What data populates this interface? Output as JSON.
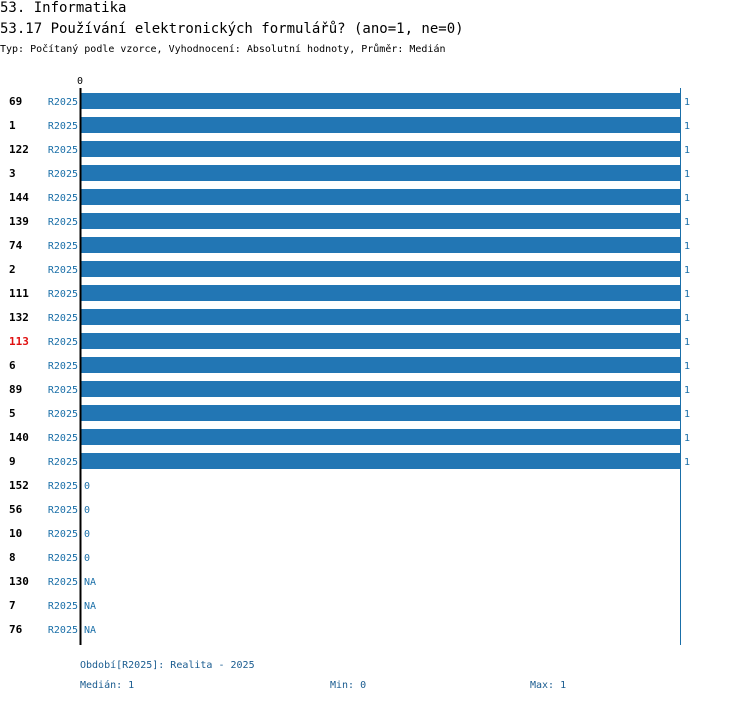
{
  "header": {
    "section_title": "53. Informatika",
    "question_title": "53.17 Používání elektronických formulářů? (ano=1, ne=0)",
    "subtitle": "Typ: Počítaný podle vzorce, Vyhodnocení: Absolutní hodnoty, Průměr: Medián"
  },
  "colors": {
    "bar": "#2276b4",
    "label_blue": "#1a6fa8",
    "highlight_red": "#e01010",
    "axis": "#000000"
  },
  "chart_data": {
    "type": "bar",
    "orientation": "horizontal",
    "title": "53.17 Používání elektronických formulářů? (ano=1, ne=0)",
    "xlim": [
      0,
      1
    ],
    "x_tick_labels": [
      "0"
    ],
    "series_label": "R2025",
    "highlight_id": "113",
    "rows": [
      {
        "id": "69",
        "series": "R2025",
        "value": 1,
        "label": "1"
      },
      {
        "id": "1",
        "series": "R2025",
        "value": 1,
        "label": "1"
      },
      {
        "id": "122",
        "series": "R2025",
        "value": 1,
        "label": "1"
      },
      {
        "id": "3",
        "series": "R2025",
        "value": 1,
        "label": "1"
      },
      {
        "id": "144",
        "series": "R2025",
        "value": 1,
        "label": "1"
      },
      {
        "id": "139",
        "series": "R2025",
        "value": 1,
        "label": "1"
      },
      {
        "id": "74",
        "series": "R2025",
        "value": 1,
        "label": "1"
      },
      {
        "id": "2",
        "series": "R2025",
        "value": 1,
        "label": "1"
      },
      {
        "id": "111",
        "series": "R2025",
        "value": 1,
        "label": "1"
      },
      {
        "id": "132",
        "series": "R2025",
        "value": 1,
        "label": "1"
      },
      {
        "id": "113",
        "series": "R2025",
        "value": 1,
        "label": "1"
      },
      {
        "id": "6",
        "series": "R2025",
        "value": 1,
        "label": "1"
      },
      {
        "id": "89",
        "series": "R2025",
        "value": 1,
        "label": "1"
      },
      {
        "id": "5",
        "series": "R2025",
        "value": 1,
        "label": "1"
      },
      {
        "id": "140",
        "series": "R2025",
        "value": 1,
        "label": "1"
      },
      {
        "id": "9",
        "series": "R2025",
        "value": 1,
        "label": "1"
      },
      {
        "id": "152",
        "series": "R2025",
        "value": 0,
        "label": "0"
      },
      {
        "id": "56",
        "series": "R2025",
        "value": 0,
        "label": "0"
      },
      {
        "id": "10",
        "series": "R2025",
        "value": 0,
        "label": "0"
      },
      {
        "id": "8",
        "series": "R2025",
        "value": 0,
        "label": "0"
      },
      {
        "id": "130",
        "series": "R2025",
        "value": null,
        "label": "NA"
      },
      {
        "id": "7",
        "series": "R2025",
        "value": null,
        "label": "NA"
      },
      {
        "id": "76",
        "series": "R2025",
        "value": null,
        "label": "NA"
      }
    ]
  },
  "footer": {
    "period": "Období[R2025]: Realita - 2025",
    "median": "Medián: 1",
    "min": "Min: 0",
    "max": "Max: 1"
  }
}
